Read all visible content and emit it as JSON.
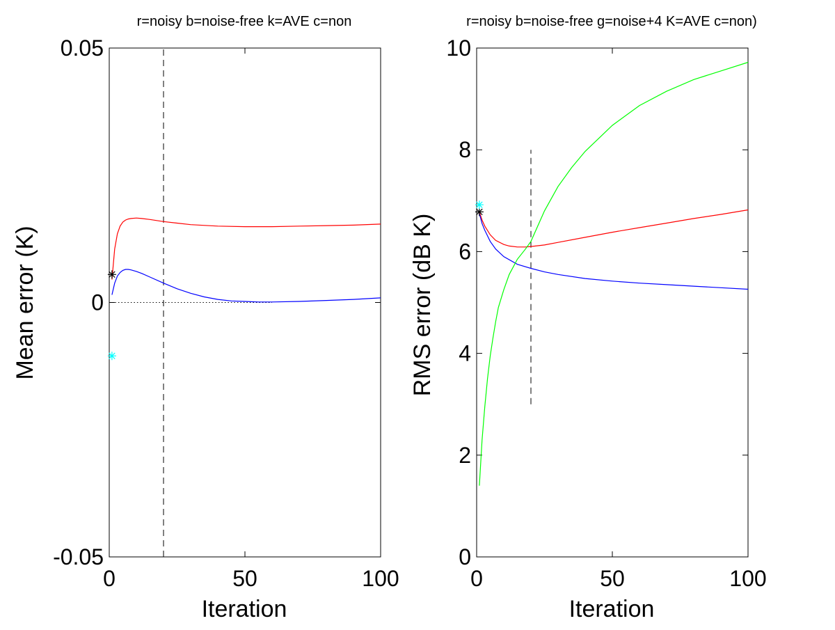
{
  "chart_data": [
    {
      "type": "line",
      "title": "r=noisy b=noise-free k=AVE c=non",
      "xlabel": "Iteration",
      "ylabel": "Mean error (K)",
      "xlim": [
        0,
        100
      ],
      "ylim": [
        -0.05,
        0.05
      ],
      "xticks": [
        0,
        50,
        100
      ],
      "xtick_labels": [
        "0",
        "50",
        "100"
      ],
      "yticks": [
        -0.05,
        0,
        0.05
      ],
      "ytick_labels": [
        "-0.05",
        "0",
        "0.05"
      ],
      "grid": false,
      "series": [
        {
          "name": "noisy",
          "color": "#ff0000",
          "x": [
            1,
            2,
            3,
            4,
            5,
            6,
            7,
            8,
            10,
            12,
            15,
            20,
            25,
            30,
            40,
            50,
            60,
            70,
            80,
            90,
            100
          ],
          "y": [
            0.0045,
            0.0105,
            0.0135,
            0.015,
            0.0158,
            0.0162,
            0.0164,
            0.0165,
            0.0166,
            0.0165,
            0.0163,
            0.0159,
            0.0156,
            0.0153,
            0.015,
            0.0149,
            0.0149,
            0.015,
            0.0151,
            0.0152,
            0.0154
          ]
        },
        {
          "name": "noise-free",
          "color": "#0000ff",
          "x": [
            1,
            2,
            3,
            4,
            5,
            6,
            7,
            8,
            10,
            12,
            15,
            20,
            25,
            30,
            35,
            40,
            45,
            50,
            55,
            60,
            70,
            80,
            90,
            100
          ],
          "y": [
            0.0015,
            0.0038,
            0.0052,
            0.0059,
            0.0063,
            0.0065,
            0.0065,
            0.0064,
            0.0061,
            0.0057,
            0.005,
            0.0038,
            0.0027,
            0.0018,
            0.0011,
            0.0006,
            0.0003,
            0.0002,
            0.0001,
            0.0001,
            0.0002,
            0.0004,
            0.0006,
            0.0009
          ]
        },
        {
          "name": "AVE",
          "color": "#000000",
          "marker": "*",
          "x": [
            1
          ],
          "y": [
            0.0055
          ]
        },
        {
          "name": "non",
          "color": "#00ffff",
          "marker": "*",
          "x": [
            1
          ],
          "y": [
            -0.0105
          ]
        }
      ],
      "reference_lines": [
        {
          "orientation": "vertical",
          "x": 20,
          "style": "dashed",
          "color": "#000000",
          "y_from": -0.05,
          "y_to": 0.05
        },
        {
          "orientation": "horizontal",
          "y": 0,
          "style": "dotted",
          "color": "#000000",
          "x_from": 1,
          "x_to": 60
        }
      ]
    },
    {
      "type": "line",
      "title": "r=noisy b=noise-free g=noise+4 K=AVE c=non)",
      "xlabel": "Iteration",
      "ylabel": "RMS error (dB K)",
      "xlim": [
        0,
        100
      ],
      "ylim": [
        0,
        10
      ],
      "xticks": [
        0,
        50,
        100
      ],
      "xtick_labels": [
        "0",
        "50",
        "100"
      ],
      "yticks": [
        0,
        2,
        4,
        6,
        8,
        10
      ],
      "ytick_labels": [
        "0",
        "2",
        "4",
        "6",
        "8",
        "10"
      ],
      "grid": false,
      "series": [
        {
          "name": "noisy",
          "color": "#ff0000",
          "x": [
            1,
            2,
            3,
            5,
            7,
            10,
            12,
            15,
            18,
            20,
            25,
            30,
            40,
            50,
            60,
            70,
            80,
            90,
            100
          ],
          "y": [
            6.78,
            6.62,
            6.5,
            6.33,
            6.22,
            6.14,
            6.11,
            6.09,
            6.09,
            6.1,
            6.13,
            6.18,
            6.28,
            6.38,
            6.47,
            6.56,
            6.65,
            6.73,
            6.82
          ]
        },
        {
          "name": "noise-free",
          "color": "#0000ff",
          "x": [
            1,
            2,
            3,
            5,
            7,
            10,
            15,
            20,
            25,
            30,
            40,
            50,
            60,
            70,
            80,
            90,
            100
          ],
          "y": [
            6.75,
            6.55,
            6.42,
            6.2,
            6.05,
            5.9,
            5.75,
            5.67,
            5.6,
            5.55,
            5.47,
            5.42,
            5.38,
            5.35,
            5.32,
            5.29,
            5.26
          ]
        },
        {
          "name": "noise+4",
          "color": "#00ff00",
          "x": [
            1,
            2,
            3,
            4,
            5,
            6,
            7,
            8,
            10,
            12,
            15,
            18,
            20,
            25,
            30,
            35,
            40,
            50,
            60,
            70,
            80,
            90,
            100
          ],
          "y": [
            1.4,
            2.3,
            2.95,
            3.5,
            3.95,
            4.3,
            4.62,
            4.9,
            5.25,
            5.55,
            5.85,
            6.05,
            6.2,
            6.8,
            7.28,
            7.65,
            7.97,
            8.48,
            8.87,
            9.15,
            9.38,
            9.55,
            9.72
          ]
        },
        {
          "name": "AVE",
          "color": "#000000",
          "marker": "*",
          "x": [
            1
          ],
          "y": [
            6.78
          ]
        },
        {
          "name": "non",
          "color": "#00ffff",
          "marker": "*",
          "x": [
            1
          ],
          "y": [
            6.92
          ]
        }
      ],
      "reference_lines": [
        {
          "orientation": "vertical",
          "x": 20,
          "style": "dashed",
          "color": "#000000",
          "y_from": 3.0,
          "y_to": 8.0
        }
      ]
    }
  ]
}
